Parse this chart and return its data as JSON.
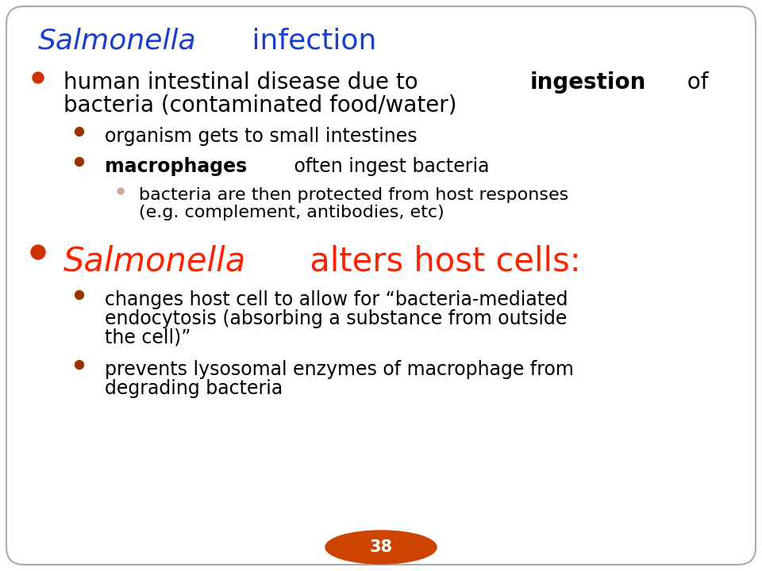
{
  "title_italic": "Salmonella",
  "title_regular": " infection",
  "title_color": "#1a3fcc",
  "background_color": "#FFFFFF",
  "border_color": "#AAAAAA",
  "bullet_color_large": "#CC3300",
  "bullet_color_medium": "#993300",
  "bullet_color_small": "#CCAA99",
  "page_number": "38",
  "page_ellipse_color": "#CC4400",
  "text_color": "#000000",
  "red_text_color": "#FF2200",
  "title_fontsize": 26,
  "l0_fontsize": 20,
  "l1_fontsize": 17,
  "l2_fontsize": 16,
  "red_fontsize": 30
}
